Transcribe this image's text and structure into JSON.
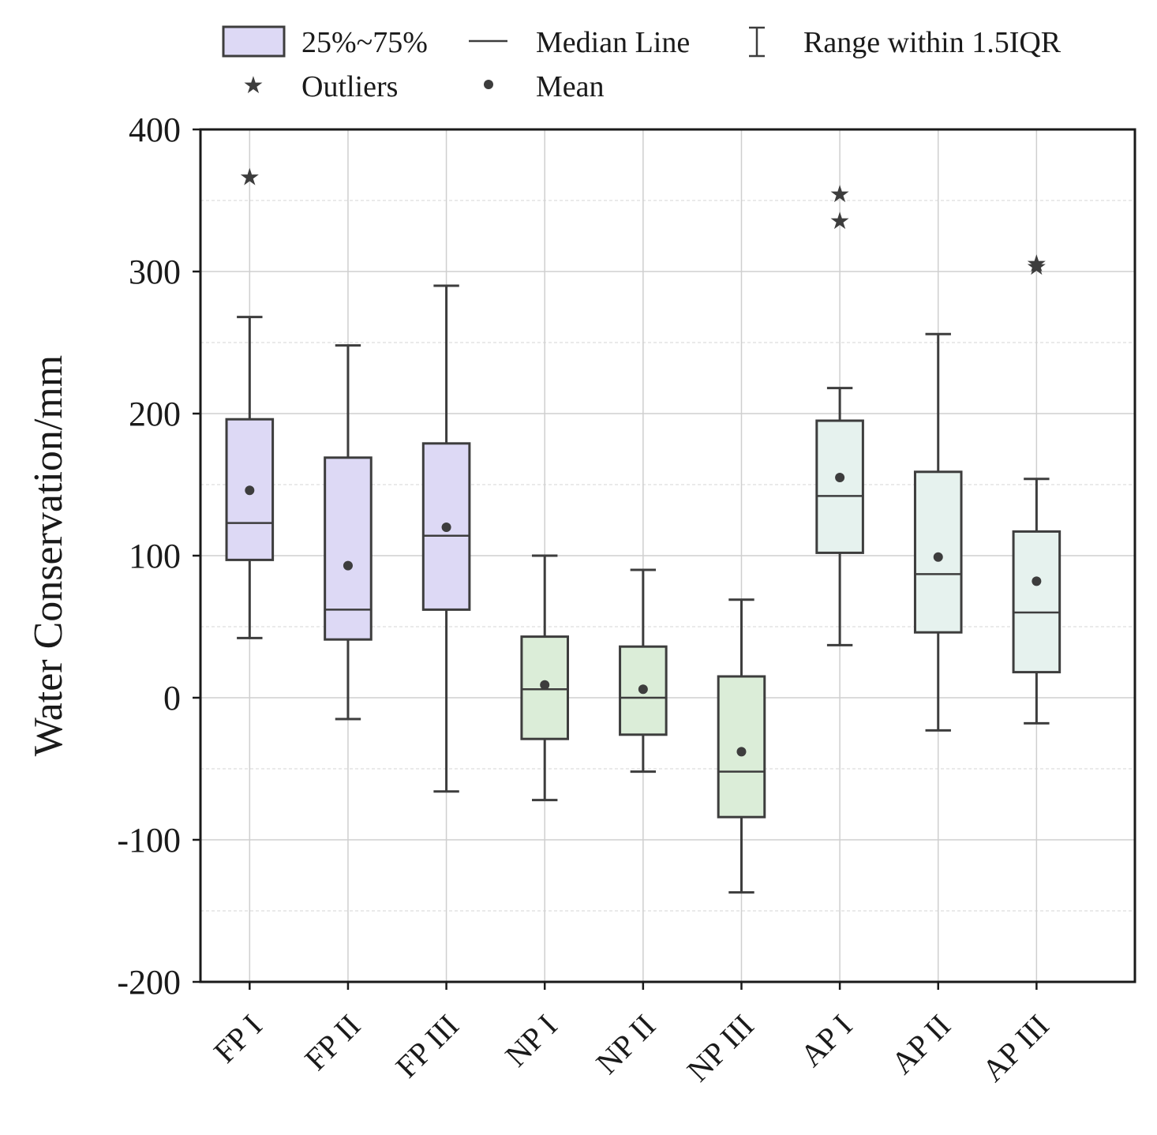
{
  "chart_data": {
    "type": "box",
    "xlabel": "",
    "ylabel": "Water Conservation/mm",
    "ylim": [
      -200,
      400
    ],
    "yticks": [
      -200,
      -100,
      0,
      100,
      200,
      300,
      400
    ],
    "ytick_labels": [
      "-200",
      "-100",
      "0",
      "100",
      "200",
      "300",
      "400"
    ],
    "grid": true,
    "legend": {
      "placement": "top",
      "items": [
        {
          "key": "box",
          "label": "25%~75%"
        },
        {
          "key": "median",
          "label": "Median Line"
        },
        {
          "key": "whisker",
          "label": "Range within 1.5IQR"
        },
        {
          "key": "outlier",
          "label": "Outliers"
        },
        {
          "key": "mean",
          "label": "Mean"
        }
      ]
    },
    "categories": [
      "FP I",
      "FP II",
      "FP III",
      "NP I",
      "NP II",
      "NP III",
      "AP I",
      "AP II",
      "AP III"
    ],
    "boxes": [
      {
        "label": "FP I",
        "group": "FP",
        "whisker_low": 42,
        "q1": 97,
        "median": 123,
        "q3": 196,
        "whisker_high": 268,
        "mean": 146,
        "outliers": [
          367
        ]
      },
      {
        "label": "FP II",
        "group": "FP",
        "whisker_low": -15,
        "q1": 41,
        "median": 62,
        "q3": 169,
        "whisker_high": 248,
        "mean": 93,
        "outliers": []
      },
      {
        "label": "FP III",
        "group": "FP",
        "whisker_low": -66,
        "q1": 62,
        "median": 114,
        "q3": 179,
        "whisker_high": 290,
        "mean": 120,
        "outliers": []
      },
      {
        "label": "NP I",
        "group": "NP",
        "whisker_low": -72,
        "q1": -29,
        "median": 6,
        "q3": 43,
        "whisker_high": 100,
        "mean": 9,
        "outliers": []
      },
      {
        "label": "NP II",
        "group": "NP",
        "whisker_low": -52,
        "q1": -26,
        "median": 0,
        "q3": 36,
        "whisker_high": 90,
        "mean": 6,
        "outliers": []
      },
      {
        "label": "NP III",
        "group": "NP",
        "whisker_low": -137,
        "q1": -84,
        "median": -52,
        "q3": 15,
        "whisker_high": 69,
        "mean": -38,
        "outliers": []
      },
      {
        "label": "AP I",
        "group": "AP",
        "whisker_low": 37,
        "q1": 102,
        "median": 142,
        "q3": 195,
        "whisker_high": 218,
        "mean": 155,
        "outliers": [
          355,
          336
        ]
      },
      {
        "label": "AP II",
        "group": "AP",
        "whisker_low": -23,
        "q1": 46,
        "median": 87,
        "q3": 159,
        "whisker_high": 256,
        "mean": 99,
        "outliers": []
      },
      {
        "label": "AP III",
        "group": "AP",
        "whisker_low": -18,
        "q1": 18,
        "median": 60,
        "q3": 117,
        "whisker_high": 154,
        "mean": 82,
        "outliers": [
          306,
          304
        ]
      }
    ],
    "group_colors": {
      "FP": "#ddd9f5",
      "NP": "#dbedd8",
      "AP": "#e6f2ee"
    },
    "line_color": "#3d3d3d"
  }
}
